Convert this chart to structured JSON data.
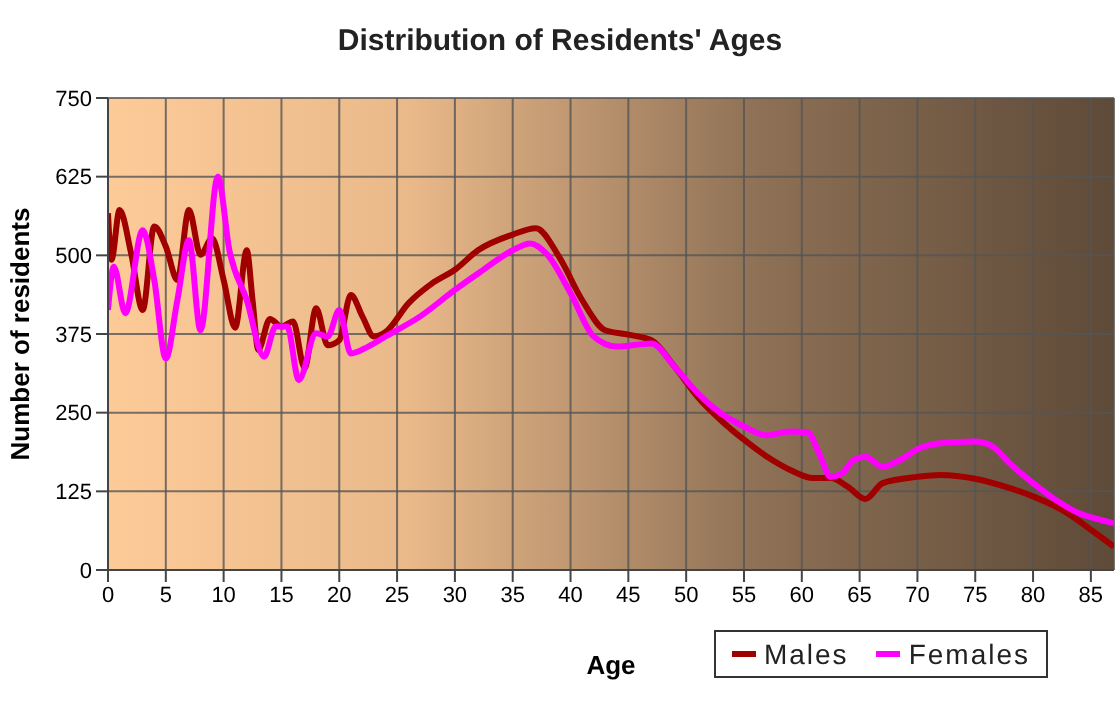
{
  "chart_data": {
    "type": "line",
    "title": "Distribution of Residents' Ages",
    "xlabel": "Age",
    "ylabel": "Number of residents",
    "xlim": [
      0,
      87
    ],
    "xticks": [
      0,
      5,
      10,
      15,
      20,
      25,
      30,
      35,
      40,
      45,
      50,
      55,
      60,
      65,
      70,
      75,
      80,
      85
    ],
    "ylim": [
      0,
      750
    ],
    "yticks": [
      0,
      125,
      250,
      375,
      500,
      625,
      750
    ],
    "grid": true,
    "legend": "bottom right",
    "marker": "none",
    "line_style": "solid",
    "series": [
      {
        "name": "Males",
        "color": "#a00000",
        "x": [
          0,
          0.3,
          1,
          2,
          3,
          4,
          5,
          6,
          7,
          8,
          9,
          10,
          11,
          12,
          12.5,
          13,
          14,
          15,
          16,
          17,
          18,
          19,
          20,
          21,
          22,
          23,
          24,
          26,
          28,
          30,
          32,
          35,
          37,
          39,
          41,
          43,
          45,
          47,
          49,
          51,
          53,
          55,
          57,
          59,
          61,
          62.5,
          64,
          65.5,
          67,
          70,
          72,
          75,
          78,
          80,
          83,
          85,
          87
        ],
        "values": [
          567,
          493,
          572,
          503,
          413,
          546,
          514,
          461,
          572,
          501,
          527,
          461,
          385,
          508,
          429,
          350,
          399,
          387,
          395,
          321,
          416,
          357,
          365,
          437,
          403,
          371,
          378,
          424,
          455,
          477,
          508,
          533,
          543,
          498,
          429,
          381,
          374,
          365,
          323,
          275,
          238,
          207,
          180,
          159,
          146,
          146,
          132,
          113,
          138,
          148,
          151,
          145,
          130,
          117,
          90,
          64,
          37
        ]
      },
      {
        "name": "Females",
        "color": "#ff00ff",
        "x": [
          0,
          0.5,
          1.5,
          3,
          4,
          5,
          6,
          7,
          8,
          9.5,
          10.5,
          12,
          13.5,
          14.5,
          15.5,
          16.5,
          18,
          19,
          20,
          21,
          22.5,
          24,
          27,
          30,
          32,
          35,
          36.5,
          38,
          40,
          42,
          44,
          47,
          49,
          51,
          53,
          55,
          57,
          59,
          60.5,
          61.5,
          62.5,
          63.5,
          64.5,
          65.5,
          67,
          68.5,
          70.5,
          73,
          75,
          76.5,
          78,
          80,
          82,
          84,
          86,
          87
        ],
        "values": [
          413,
          482,
          408,
          540,
          461,
          336,
          429,
          524,
          381,
          625,
          508,
          429,
          339,
          387,
          387,
          302,
          376,
          371,
          413,
          344,
          355,
          371,
          403,
          445,
          471,
          508,
          519,
          501,
          440,
          371,
          355,
          360,
          323,
          281,
          249,
          228,
          214,
          220,
          219,
          185,
          148,
          154,
          175,
          180,
          164,
          175,
          196,
          203,
          204,
          196,
          169,
          138,
          111,
          90,
          79,
          74
        ]
      }
    ]
  }
}
